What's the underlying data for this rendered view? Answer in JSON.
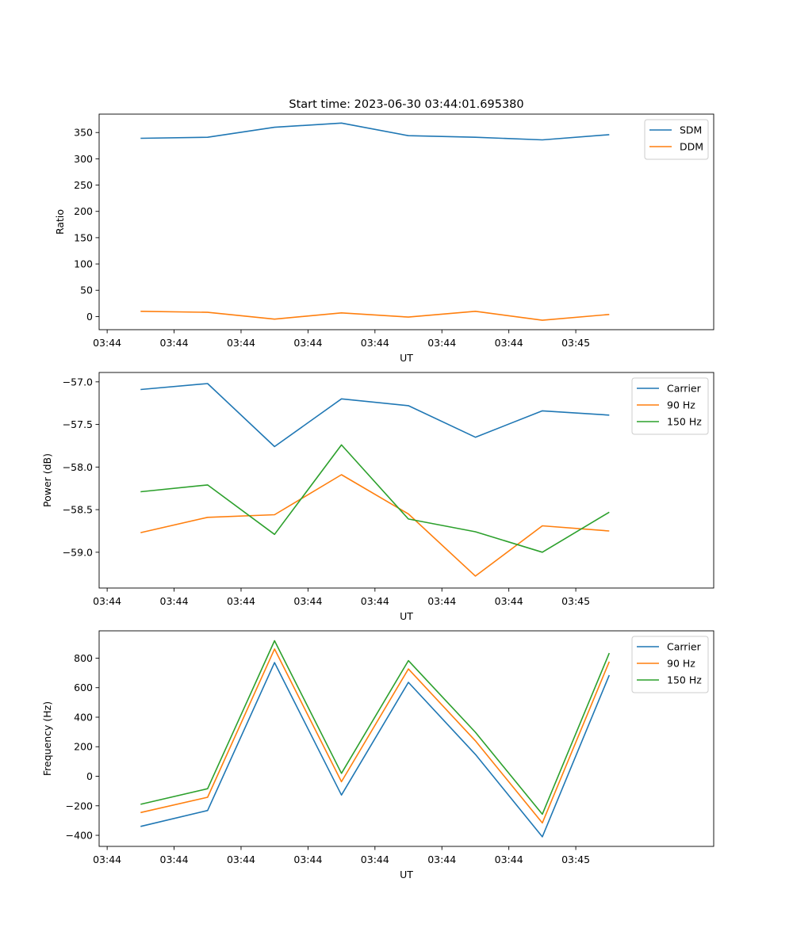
{
  "figure": {
    "title": "Start time: 2023-06-30 03:44:01.695380"
  },
  "colors": {
    "blue": "#1f77b4",
    "orange": "#ff7f0e",
    "green": "#2ca02c"
  },
  "chart_data": [
    {
      "type": "line",
      "title": "Start time: 2023-06-30 03:44:01.695380",
      "xlabel": "UT",
      "ylabel": "Ratio",
      "x_tick_labels": [
        "03:44",
        "03:44",
        "03:44",
        "03:44",
        "03:44",
        "03:44",
        "03:44",
        "03:45"
      ],
      "xlim": [
        -0.62,
        8.56
      ],
      "x": [
        0,
        1,
        2,
        3,
        4,
        5,
        6,
        7
      ],
      "ylim": [
        -25,
        385
      ],
      "yticks": [
        0,
        50,
        100,
        150,
        200,
        250,
        300,
        350
      ],
      "legend": "top-right",
      "grid": false,
      "series": [
        {
          "name": "SDM",
          "color": "#1f77b4",
          "values": [
            339,
            341,
            360,
            368,
            344,
            341,
            336,
            346
          ]
        },
        {
          "name": "DDM",
          "color": "#ff7f0e",
          "values": [
            10,
            8,
            -5,
            7,
            -1,
            10,
            -7,
            4
          ]
        }
      ]
    },
    {
      "type": "line",
      "title": "",
      "xlabel": "UT",
      "ylabel": "Power (dB)",
      "x_tick_labels": [
        "03:44",
        "03:44",
        "03:44",
        "03:44",
        "03:44",
        "03:44",
        "03:44",
        "03:45"
      ],
      "xlim": [
        -0.62,
        8.56
      ],
      "x": [
        0,
        1,
        2,
        3,
        4,
        5,
        6,
        7
      ],
      "ylim": [
        -59.42,
        -56.89
      ],
      "yticks": [
        -59.0,
        -58.5,
        -58.0,
        -57.5,
        -57.0
      ],
      "ytick_labels": [
        "−59.0",
        "−58.5",
        "−58.0",
        "−57.5",
        "−57.0"
      ],
      "legend": "top-right",
      "grid": false,
      "series": [
        {
          "name": "Carrier",
          "color": "#1f77b4",
          "values": [
            -57.09,
            -57.02,
            -57.76,
            -57.2,
            -57.28,
            -57.65,
            -57.34,
            -57.39
          ]
        },
        {
          "name": "90 Hz",
          "color": "#ff7f0e",
          "values": [
            -58.77,
            -58.59,
            -58.56,
            -58.09,
            -58.55,
            -59.28,
            -58.69,
            -58.75
          ]
        },
        {
          "name": "150 Hz",
          "color": "#2ca02c",
          "values": [
            -58.29,
            -58.21,
            -58.79,
            -57.74,
            -58.61,
            -58.76,
            -59.0,
            -58.53
          ]
        }
      ]
    },
    {
      "type": "line",
      "title": "",
      "xlabel": "UT",
      "ylabel": "Frequency (Hz)",
      "x_tick_labels": [
        "03:44",
        "03:44",
        "03:44",
        "03:44",
        "03:44",
        "03:44",
        "03:44",
        "03:45"
      ],
      "xlim": [
        -0.62,
        8.56
      ],
      "x": [
        0,
        1,
        2,
        3,
        4,
        5,
        6,
        7
      ],
      "ylim": [
        -475,
        985
      ],
      "yticks": [
        -400,
        -200,
        0,
        200,
        400,
        600,
        800
      ],
      "ytick_labels": [
        "−400",
        "−200",
        "0",
        "200",
        "400",
        "600",
        "800"
      ],
      "legend": "top-right",
      "grid": false,
      "series": [
        {
          "name": "Carrier",
          "color": "#1f77b4",
          "values": [
            -340,
            -232,
            770,
            -127,
            636,
            148,
            -410,
            685
          ]
        },
        {
          "name": "90 Hz",
          "color": "#ff7f0e",
          "values": [
            -246,
            -142,
            862,
            -37,
            727,
            240,
            -316,
            776
          ]
        },
        {
          "name": "150 Hz",
          "color": "#2ca02c",
          "values": [
            -190,
            -84,
            918,
            20,
            783,
            298,
            -257,
            834
          ]
        }
      ]
    }
  ]
}
